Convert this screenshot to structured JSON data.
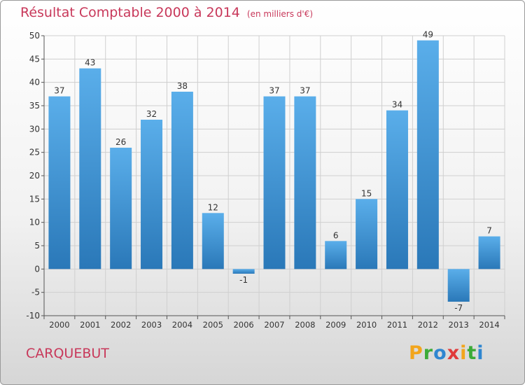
{
  "chart_data": {
    "type": "bar",
    "title": "Résultat Comptable 2000 à 2014",
    "subtitle": "(en milliers d'€)",
    "categories": [
      "2000",
      "2001",
      "2002",
      "2003",
      "2004",
      "2005",
      "2006",
      "2007",
      "2008",
      "2009",
      "2010",
      "2011",
      "2012",
      "2013",
      "2014"
    ],
    "values": [
      37,
      43,
      26,
      32,
      38,
      12,
      -1,
      37,
      37,
      6,
      15,
      34,
      49,
      -7,
      7
    ],
    "ylim": [
      -10,
      50
    ],
    "yticks": [
      -10,
      -5,
      0,
      5,
      10,
      15,
      20,
      25,
      30,
      35,
      40,
      45,
      50
    ],
    "grid": true,
    "xlabel": "",
    "ylabel": ""
  },
  "commune": "CARQUEBUT",
  "brand": {
    "name": "Proxiti",
    "letters": [
      "P",
      "r",
      "o",
      "x",
      "i",
      "t",
      "i"
    ],
    "letter_colors": [
      "#f2a51c",
      "#3cab38",
      "#2f86d0",
      "#e03a3a",
      "#f2a51c",
      "#3cab38",
      "#2f86d0"
    ]
  },
  "colors": {
    "title": "#c8385a",
    "bar_light": "#5aaeea",
    "bar_dark": "#2a78b8",
    "grid": "#cfcfcf"
  }
}
